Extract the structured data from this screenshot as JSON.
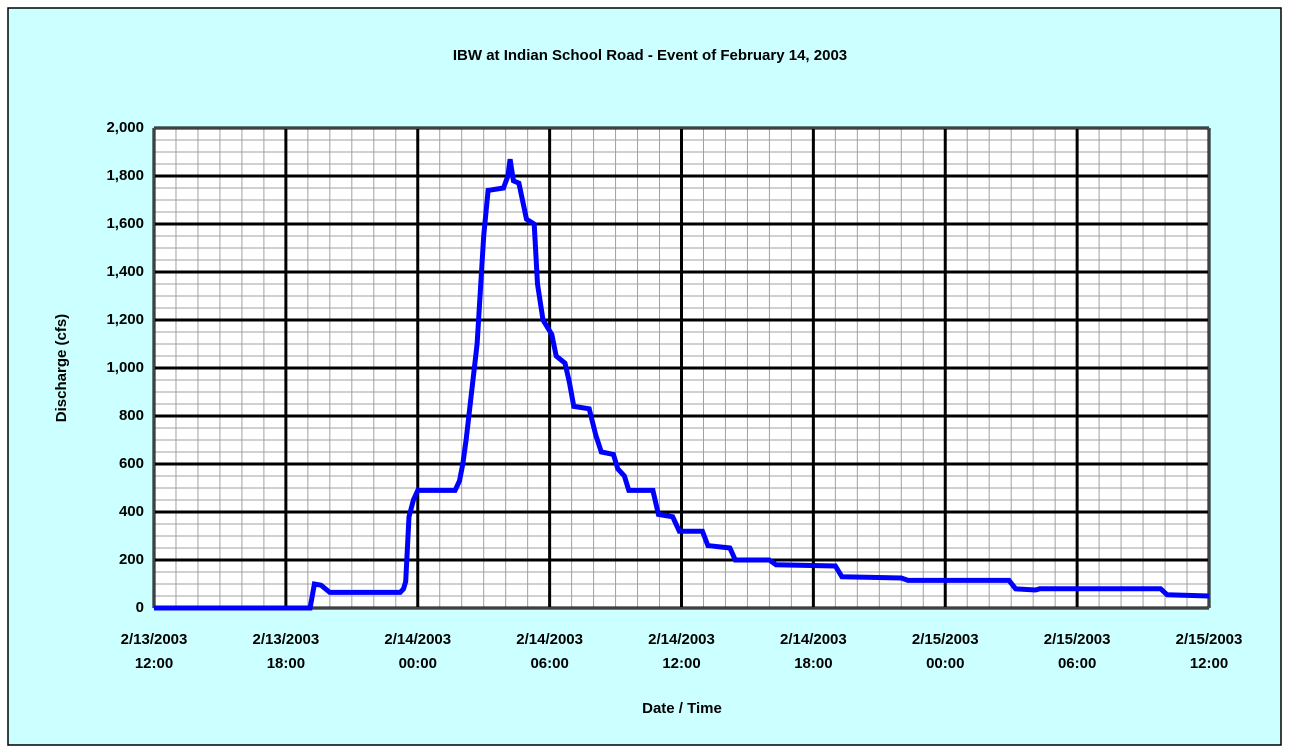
{
  "chart_data": {
    "type": "line",
    "title": "IBW at Indian School Road - Event of February 14, 2003",
    "x_label": "Date / Time",
    "y_label": "Discharge (cfs)",
    "x": [
      "2003-02-13T12:00",
      "2003-02-13T19:06",
      "2003-02-13T19:18",
      "2003-02-13T19:36",
      "2003-02-13T20:00",
      "2003-02-13T23:12",
      "2003-02-13T23:21",
      "2003-02-13T23:27",
      "2003-02-13T23:36",
      "2003-02-13T23:48",
      "2003-02-14T00:00",
      "2003-02-14T01:42",
      "2003-02-14T01:54",
      "2003-02-14T02:03",
      "2003-02-14T02:12",
      "2003-02-14T02:27",
      "2003-02-14T02:42",
      "2003-02-14T03:00",
      "2003-02-14T03:12",
      "2003-02-14T03:54",
      "2003-02-14T04:06",
      "2003-02-14T04:12",
      "2003-02-14T04:21",
      "2003-02-14T04:36",
      "2003-02-14T04:57",
      "2003-02-14T05:18",
      "2003-02-14T05:27",
      "2003-02-14T05:42",
      "2003-02-14T06:06",
      "2003-02-14T06:18",
      "2003-02-14T06:42",
      "2003-02-14T06:54",
      "2003-02-14T07:06",
      "2003-02-14T07:48",
      "2003-02-14T08:06",
      "2003-02-14T08:21",
      "2003-02-14T08:54",
      "2003-02-14T09:06",
      "2003-02-14T09:24",
      "2003-02-14T09:36",
      "2003-02-14T10:42",
      "2003-02-14T10:57",
      "2003-02-14T11:36",
      "2003-02-14T11:54",
      "2003-02-14T12:57",
      "2003-02-14T13:12",
      "2003-02-14T14:12",
      "2003-02-14T14:27",
      "2003-02-14T16:00",
      "2003-02-14T16:18",
      "2003-02-14T19:00",
      "2003-02-14T19:18",
      "2003-02-14T22:00",
      "2003-02-14T22:18",
      "2003-02-15T02:54",
      "2003-02-15T03:12",
      "2003-02-15T04:06",
      "2003-02-15T04:18",
      "2003-02-15T09:48",
      "2003-02-15T10:06",
      "2003-02-15T12:00"
    ],
    "series": [
      {
        "name": "Discharge",
        "color": "#0000ff",
        "values": [
          0,
          0,
          100,
          95,
          65,
          65,
          80,
          110,
          380,
          450,
          490,
          490,
          530,
          600,
          700,
          900,
          1100,
          1550,
          1740,
          1750,
          1800,
          1870,
          1780,
          1770,
          1620,
          1600,
          1350,
          1200,
          1140,
          1050,
          1020,
          940,
          840,
          830,
          720,
          650,
          640,
          580,
          550,
          490,
          490,
          390,
          380,
          320,
          320,
          260,
          250,
          200,
          200,
          180,
          175,
          130,
          125,
          115,
          115,
          80,
          75,
          80,
          80,
          55,
          50
        ]
      }
    ],
    "xlim": [
      "2003-02-13T12:00",
      "2003-02-15T12:00"
    ],
    "xticks": [
      {
        "value": "2003-02-13T12:00",
        "label": "2/13/2003 12:00"
      },
      {
        "value": "2003-02-13T18:00",
        "label": "2/13/2003 18:00"
      },
      {
        "value": "2003-02-14T00:00",
        "label": "2/14/2003 00:00"
      },
      {
        "value": "2003-02-14T06:00",
        "label": "2/14/2003 06:00"
      },
      {
        "value": "2003-02-14T12:00",
        "label": "2/14/2003 12:00"
      },
      {
        "value": "2003-02-14T18:00",
        "label": "2/14/2003 18:00"
      },
      {
        "value": "2003-02-15T00:00",
        "label": "2/15/2003 00:00"
      },
      {
        "value": "2003-02-15T06:00",
        "label": "2/15/2003 06:00"
      },
      {
        "value": "2003-02-15T12:00",
        "label": "2/15/2003 12:00"
      }
    ],
    "ylim": [
      0,
      2000
    ],
    "yticks": [
      0,
      200,
      400,
      600,
      800,
      {
        "value": 1000,
        "label": "1,000"
      },
      {
        "value": 1200,
        "label": "1,200"
      },
      {
        "value": 1400,
        "label": "1,400"
      },
      {
        "value": 1600,
        "label": "1,600"
      },
      {
        "value": 1800,
        "label": "1,800"
      },
      {
        "value": 2000,
        "label": "2,000"
      }
    ],
    "grid": true,
    "minor_grid": true
  }
}
